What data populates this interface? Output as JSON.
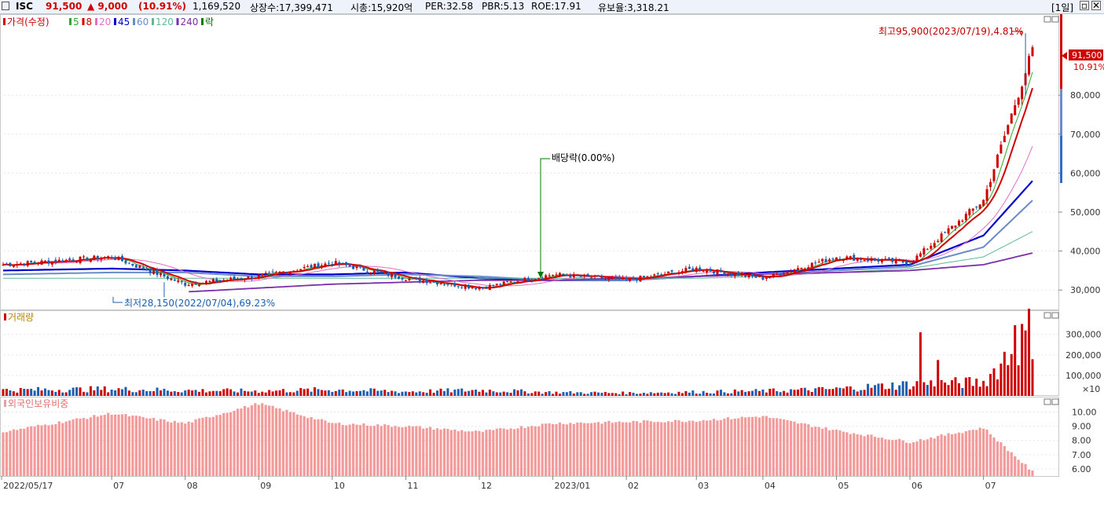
{
  "header": {
    "ticker": "ISC",
    "price": "91,500",
    "change": "▲ 9,000",
    "change_pct": "(10.91%)",
    "volume": "1,169,520",
    "listed": "상장수:17,399,471",
    "mktcap": "시총:15,920억",
    "per": "PER:32.58",
    "pbr": "PBR:5.13",
    "roe": "ROE:17.91",
    "float": "유보율:3,318.21",
    "period": "[1일]"
  },
  "panels": {
    "price": {
      "legend": [
        {
          "label": "가격(수정)",
          "color": "#d00000"
        },
        {
          "label": "5",
          "color": "#2ea82e"
        },
        {
          "label": "8",
          "color": "#d00000"
        },
        {
          "label": "20",
          "color": "#e36fc3"
        },
        {
          "label": "45",
          "color": "#0000cc"
        },
        {
          "label": "60",
          "color": "#6a8cc8"
        },
        {
          "label": "120",
          "color": "#5fb89a"
        },
        {
          "label": "240",
          "color": "#7a2ea8"
        },
        {
          "label": "락",
          "color": "#007a00"
        }
      ],
      "ticks": [
        "80,000",
        "70,000",
        "60,000",
        "50,000",
        "40,000",
        "30,000"
      ],
      "last_price_label": "91,500",
      "last_pct_label": "10.91%",
      "high_annotation": "최고95,900(2023/07/19),4.81%",
      "low_annotation": "최저28,150(2022/07/04),69.23%",
      "dividend_annotation": "배당락(0.00%)"
    },
    "volume": {
      "title": "거래량",
      "ticks": [
        "300,000",
        "200,000",
        "100,000"
      ],
      "unit": "×10"
    },
    "foreign": {
      "title": "외국인보유비중",
      "ticks": [
        "10.00",
        "9.00",
        "8.00",
        "7.00",
        "6.00"
      ]
    }
  },
  "xaxis": {
    "labels": [
      "2022/05/17",
      "07",
      "08",
      "09",
      "10",
      "11",
      "12",
      "2023/01",
      "02",
      "03",
      "04",
      "05",
      "06",
      "07"
    ]
  },
  "chart_data": [
    {
      "type": "line",
      "name": "price",
      "x": [
        "2022/05",
        "2022/06",
        "2022/07",
        "2022/08",
        "2022/09",
        "2022/10",
        "2022/11",
        "2022/12",
        "2023/01",
        "2023/02",
        "2023/03",
        "2023/04",
        "2023/05",
        "2023/06",
        "2023/07"
      ],
      "series": [
        {
          "name": "가격(수정)",
          "values": [
            36500,
            38500,
            31500,
            33500,
            37000,
            33000,
            30500,
            34000,
            32500,
            35500,
            33000,
            38500,
            37000,
            53000,
            91500
          ]
        },
        {
          "name": "45",
          "values": [
            35000,
            35500,
            35000,
            34000,
            34000,
            34500,
            33000,
            32500,
            32500,
            33500,
            34500,
            35500,
            36500,
            44000,
            58000
          ]
        },
        {
          "name": "60",
          "values": [
            34000,
            34500,
            34500,
            33500,
            33500,
            34000,
            33500,
            32500,
            32500,
            33500,
            34000,
            35000,
            36000,
            41000,
            53000
          ]
        },
        {
          "name": "120",
          "values": [
            33000,
            33000,
            33000,
            33000,
            33000,
            33000,
            33000,
            33000,
            33000,
            33000,
            33500,
            34500,
            35500,
            38500,
            45000
          ]
        },
        {
          "name": "240",
          "values": [
            null,
            null,
            29500,
            30500,
            31500,
            32000,
            32500,
            32500,
            33000,
            33500,
            34000,
            34500,
            35000,
            36500,
            39500
          ]
        }
      ],
      "ylim": [
        25000,
        100000
      ],
      "high": 95900,
      "low": 28150
    },
    {
      "type": "bar",
      "name": "volume",
      "categories": [
        "2022/05",
        "2022/06",
        "2022/07",
        "2022/08",
        "2022/09",
        "2022/10",
        "2022/11",
        "2022/12",
        "2023/01",
        "2023/02",
        "2023/03",
        "2023/04",
        "2023/05",
        "2023/06",
        "2023/07"
      ],
      "values": [
        30000,
        35000,
        28000,
        25000,
        32000,
        22000,
        30000,
        18000,
        15000,
        20000,
        25000,
        35000,
        60000,
        70000,
        340000
      ],
      "peaks": [
        310000,
        175000,
        345000,
        215000
      ],
      "ylim": [
        0,
        360000
      ]
    },
    {
      "type": "bar",
      "name": "foreign_ratio",
      "categories": [
        "2022/05",
        "2022/06",
        "2022/07",
        "2022/08",
        "2022/09",
        "2022/10",
        "2022/11",
        "2022/12",
        "2023/01",
        "2023/02",
        "2023/03",
        "2023/04",
        "2023/05",
        "2023/06",
        "2023/07"
      ],
      "values": [
        8.6,
        9.9,
        9.2,
        10.6,
        9.2,
        9.0,
        8.6,
        9.2,
        9.3,
        9.4,
        9.7,
        8.7,
        7.9,
        8.9,
        5.8
      ],
      "ylim": [
        5.5,
        10.8
      ]
    }
  ]
}
